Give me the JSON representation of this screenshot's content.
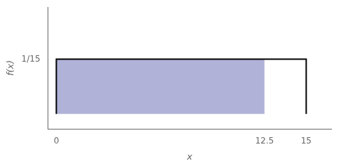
{
  "chart_data": {
    "type": "line",
    "xlabel": "x",
    "ylabel": "f(x)",
    "series": [
      {
        "type": "area",
        "color": "#7b7fbe",
        "x": [
          0,
          12.5
        ],
        "values": [
          0.06666666666666667,
          0.06666666666666667
        ]
      },
      {
        "type": "line",
        "color": "#000000",
        "x": [
          0,
          0,
          15,
          15
        ],
        "values": [
          0,
          0.06666666666666667,
          0.06666666666666667,
          0
        ]
      }
    ],
    "xlim": [
      -0.5,
      16.5
    ],
    "ylim": [
      -0.018,
      0.13
    ],
    "xticks": [
      0,
      12.5,
      15
    ],
    "yticks": [
      {
        "value": 0.06666666666666667,
        "label": "1/15"
      }
    ],
    "grid": false
  }
}
